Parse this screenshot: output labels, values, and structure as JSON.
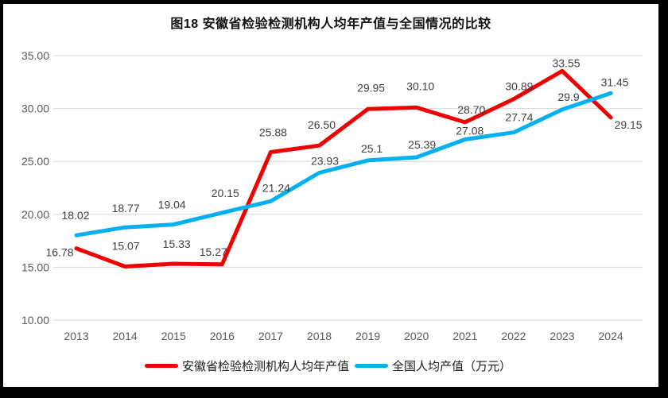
{
  "chart_data": {
    "type": "line",
    "title": "图18 安徽省检验检测机构人均年产值与全国情况的比较",
    "categories": [
      "2013",
      "2014",
      "2015",
      "2016",
      "2017",
      "2018",
      "2019",
      "2020",
      "2021",
      "2022",
      "2023",
      "2024"
    ],
    "series": [
      {
        "name": "安徽省检验检测机构人均年产值",
        "color": "#ee0000",
        "values": [
          16.78,
          15.07,
          15.33,
          15.27,
          25.88,
          26.5,
          29.95,
          30.1,
          28.7,
          30.89,
          33.55,
          29.15
        ],
        "labels": [
          "16.78",
          "15.07",
          "15.33",
          "15.27",
          "25.88",
          "26.50",
          "29.95",
          "30.10",
          "28.70",
          "30.89",
          "33.55",
          "29.15"
        ]
      },
      {
        "name": "全国人均产值（万元）",
        "color": "#00b0f0",
        "values": [
          18.02,
          18.77,
          19.04,
          20.15,
          21.24,
          23.93,
          25.1,
          25.39,
          27.08,
          27.74,
          29.9,
          31.45
        ],
        "labels": [
          "18.02",
          "18.77",
          "19.04",
          "20.15",
          "21.24",
          "23.93",
          "25.1",
          "25.39",
          "27.08",
          "27.74",
          "29.9",
          "31.45"
        ]
      }
    ],
    "y_axis": {
      "min": 10,
      "max": 35,
      "step": 5,
      "tick_values": [
        35,
        30,
        25,
        20,
        15,
        10
      ],
      "tick_labels": [
        "35.00",
        "30.00",
        "25.00",
        "20.00",
        "15.00",
        "10.00"
      ]
    },
    "grid": true,
    "legend_position": "bottom",
    "colors": {
      "grid": "#d9d9d9",
      "axis_text": "#595959",
      "data_label": "#404040",
      "frame": "#000000",
      "background": "#ffffff"
    }
  }
}
